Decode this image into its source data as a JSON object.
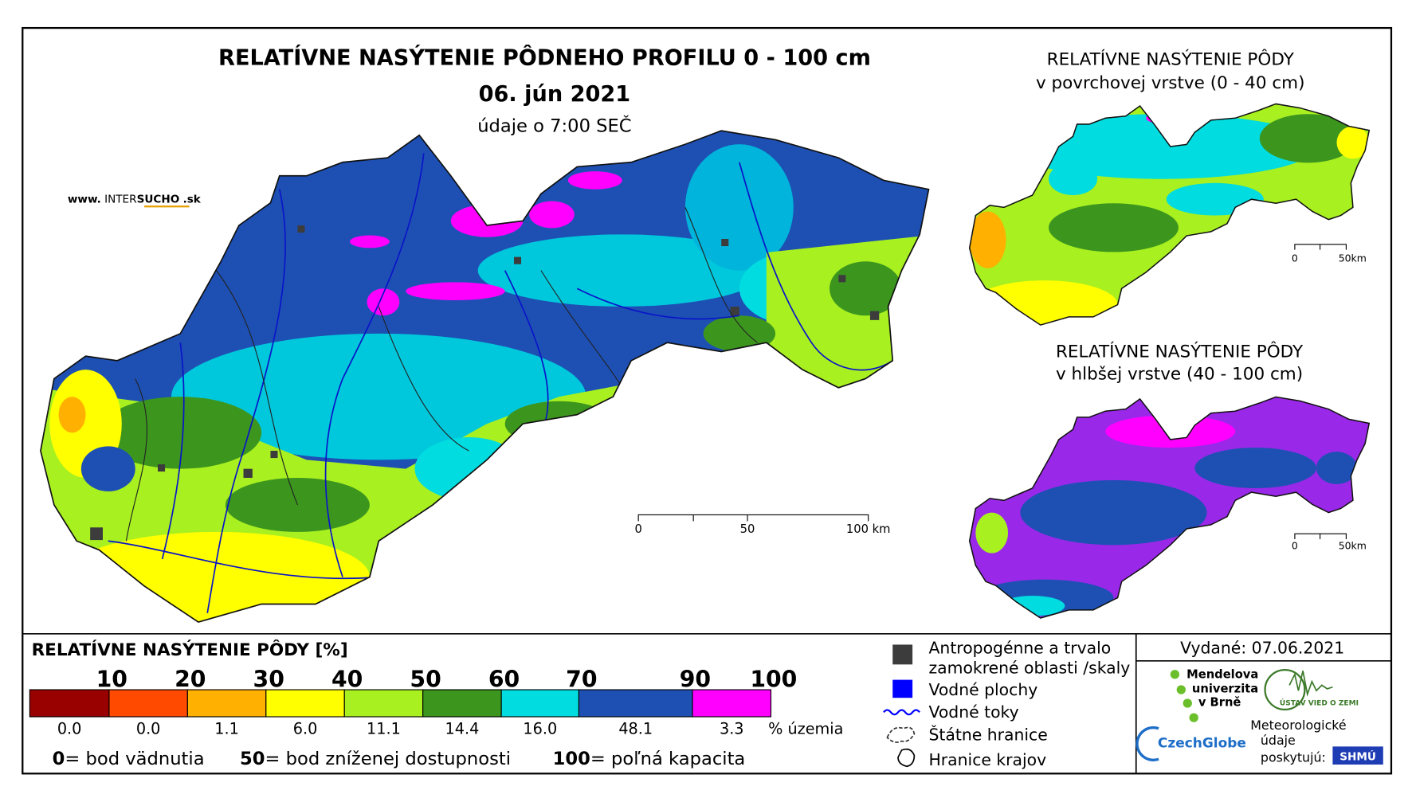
{
  "header": {
    "title": "RELATÍVNE NASÝTENIE PÔDNEHO PROFILU 0 - 100 cm",
    "date": "06. jún 2021",
    "note": "údaje o 7:00 SEČ"
  },
  "website": {
    "prefix": "www.",
    "inter": "INTER",
    "sucho": "SUCHO",
    "suffix": ".sk"
  },
  "main_scale": {
    "labels": [
      "0",
      "50",
      "100 km"
    ]
  },
  "insets": [
    {
      "title_1": "RELATÍVNE NASÝTENIE PÔDY",
      "title_2": "v povrchovej vrstve (0 - 40 cm)",
      "scale_labels": [
        "0",
        "50km"
      ]
    },
    {
      "title_1": "RELATÍVNE NASÝTENIE PÔDY",
      "title_2": "v hlbšej vrstve (40 - 100 cm)",
      "scale_labels": [
        "0",
        "50km"
      ]
    }
  ],
  "legend": {
    "title": "RELATÍVNE NASÝTENIE PÔDY [%]",
    "boundaries": [
      "10",
      "20",
      "30",
      "40",
      "50",
      "60",
      "70",
      "90",
      "100"
    ],
    "classes": [
      {
        "color": "#990000",
        "share": "0.0"
      },
      {
        "color": "#ff4a00",
        "share": "0.0"
      },
      {
        "color": "#ffb000",
        "share": "1.1"
      },
      {
        "color": "#ffff00",
        "share": "6.0"
      },
      {
        "color": "#a8f020",
        "share": "11.1"
      },
      {
        "color": "#3c961e",
        "share": "14.4"
      },
      {
        "color": "#00dce0",
        "share": "16.0"
      },
      {
        "color": "#1e50b4",
        "share": "48.1"
      },
      {
        "color": "#ff00ff",
        "share": "3.3"
      }
    ],
    "share_unit": "% územia",
    "notes": [
      {
        "key": "0",
        "text": "= bod vädnutia"
      },
      {
        "key": "50",
        "text": "= bod zníženej dostupnosti"
      },
      {
        "key": "100",
        "text": "= poľná kapacita"
      }
    ]
  },
  "symbols": [
    {
      "lines": [
        "Antropogénne a trvalo",
        "zamokrené oblasti /skaly"
      ]
    },
    {
      "lines": [
        "Vodné plochy"
      ]
    },
    {
      "lines": [
        "Vodné toky"
      ]
    },
    {
      "lines": [
        "Štátne hranice"
      ]
    },
    {
      "lines": [
        "Hranice krajov"
      ]
    }
  ],
  "issued": "Vydané: 07.06.2021",
  "logos": {
    "mendel": [
      "Mendelova",
      "univerzita",
      "v Brně"
    ],
    "czechglobe": "CzechGlobe",
    "uvz": "ÚSTAV VIED O ZEMI",
    "shmu_note": [
      "Meteorologické",
      "údaje",
      "poskytujú:"
    ],
    "shmu": "SHMÚ"
  }
}
